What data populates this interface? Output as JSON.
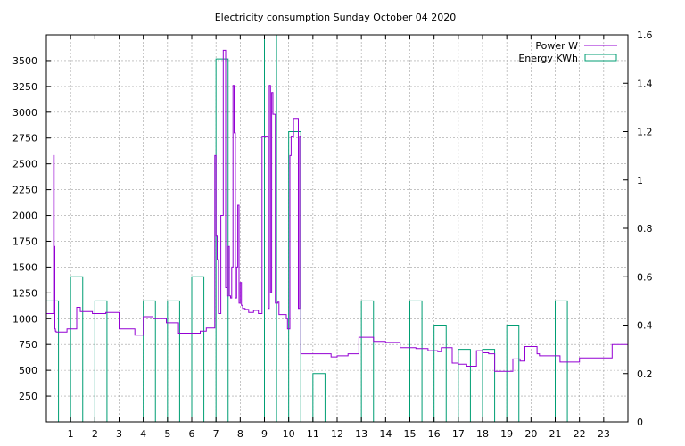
{
  "chart_data": {
    "type": "line",
    "title": "Electricity consumption Sunday October 04 2020",
    "xlabel": "",
    "ylabel": "",
    "y2label": "",
    "xlim": [
      0,
      24
    ],
    "ylim": [
      0,
      3750
    ],
    "y2lim": [
      0,
      1.6
    ],
    "grid": true,
    "legend_position": "top-right",
    "x_ticks": [
      1,
      2,
      3,
      4,
      5,
      6,
      7,
      8,
      9,
      10,
      11,
      12,
      13,
      14,
      15,
      16,
      17,
      18,
      19,
      20,
      21,
      22,
      23
    ],
    "y_ticks": [
      250,
      500,
      750,
      1000,
      1250,
      1500,
      1750,
      2000,
      2250,
      2500,
      2750,
      3000,
      3250,
      3500
    ],
    "y2_ticks": [
      0,
      0.2,
      0.4,
      0.6,
      0.8,
      1,
      1.2,
      1.4,
      1.6
    ],
    "series": [
      {
        "name": "Energy KWh",
        "axis": "y2",
        "kind": "boxes",
        "color": "#009e73",
        "bar_width": 0.5,
        "x": [
          0,
          1,
          2,
          4,
          5,
          6,
          7,
          9,
          10,
          11,
          13,
          15,
          16,
          17,
          18,
          19,
          21
        ],
        "values": [
          0.5,
          0.6,
          0.5,
          0.5,
          0.5,
          0.6,
          1.5,
          1.6,
          1.2,
          0.2,
          0.5,
          0.5,
          0.4,
          0.3,
          0.3,
          0.4,
          0.5
        ]
      },
      {
        "name": "Power W",
        "axis": "y",
        "kind": "steps",
        "color": "#9400d3",
        "x": [
          0,
          0.3,
          0.32,
          0.35,
          0.37,
          0.4,
          0.85,
          1.25,
          1.4,
          1.9,
          2.45,
          3.0,
          3.65,
          4.0,
          4.4,
          4.95,
          5.45,
          6.0,
          6.35,
          6.6,
          6.95,
          7.0,
          7.05,
          7.1,
          7.2,
          7.3,
          7.4,
          7.45,
          7.5,
          7.55,
          7.6,
          7.65,
          7.7,
          7.75,
          7.8,
          7.85,
          7.9,
          7.95,
          8.0,
          8.05,
          8.1,
          8.2,
          8.35,
          8.55,
          8.75,
          8.85,
          8.9,
          9.15,
          9.2,
          9.25,
          9.3,
          9.35,
          9.45,
          9.55,
          9.6,
          9.9,
          9.95,
          10.05,
          10.1,
          10.2,
          10.4,
          10.45,
          10.5,
          11.0,
          11.75,
          12.0,
          12.45,
          12.9,
          13.5,
          14.0,
          14.6,
          15.25,
          15.75,
          16.15,
          16.3,
          16.75,
          17.0,
          17.35,
          17.75,
          18.0,
          18.25,
          18.5,
          19.05,
          19.25,
          19.55,
          19.75,
          20.25,
          20.35,
          21.2,
          21.5,
          22.0,
          22.75,
          23.35,
          24.0
        ],
        "values": [
          1050,
          2580,
          1700,
          900,
          880,
          870,
          900,
          1110,
          1070,
          1050,
          1060,
          900,
          840,
          1020,
          1000,
          960,
          860,
          860,
          880,
          910,
          2580,
          1800,
          1570,
          1050,
          2000,
          3600,
          1300,
          1220,
          1700,
          1220,
          1200,
          1500,
          3260,
          2800,
          1200,
          1500,
          2100,
          1150,
          1350,
          1130,
          1100,
          1090,
          1060,
          1080,
          1050,
          1050,
          2760,
          1100,
          3260,
          1250,
          3190,
          2980,
          1150,
          1160,
          1040,
          1000,
          900,
          2580,
          2760,
          2940,
          1100,
          2760,
          660,
          660,
          630,
          640,
          660,
          820,
          780,
          770,
          720,
          710,
          690,
          680,
          720,
          570,
          560,
          540,
          690,
          670,
          660,
          490,
          490,
          610,
          590,
          730,
          660,
          640,
          580,
          580,
          620,
          620,
          750,
          700
        ]
      }
    ]
  }
}
